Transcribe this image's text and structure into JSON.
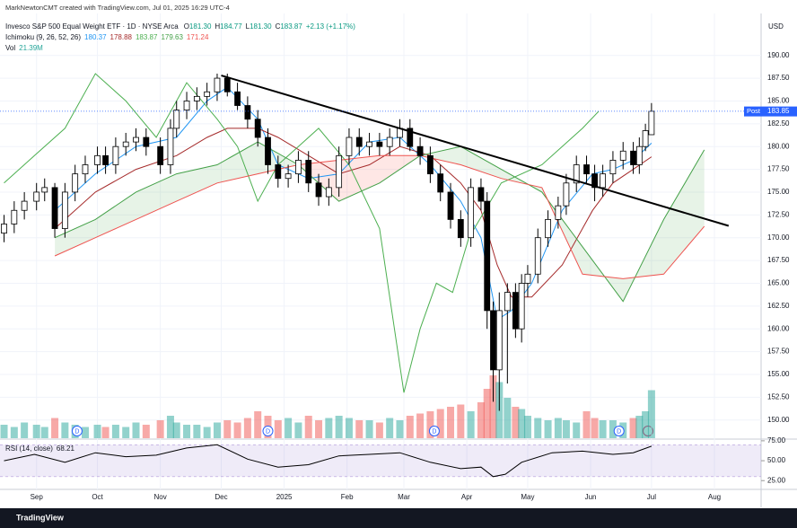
{
  "chart_data": {
    "type": "candlestick",
    "created_by": "MarkNewtonCMT created with TradingView.com, Jul 01, 2025 16:29 UTC-4",
    "currency": "USD",
    "brand": "TradingView",
    "legend": {
      "symbol": "Invesco S&P 500 Equal Weight ETF · 1D · NYSE Arca",
      "ohlc": [
        {
          "key": "O",
          "label": "181.30"
        },
        {
          "key": "H",
          "label": "184.77"
        },
        {
          "key": "L",
          "label": "181.30"
        },
        {
          "key": "C",
          "label": "183.87"
        }
      ],
      "change": "+2.13 (+1.17%)",
      "color": "#089981"
    },
    "xlim": [
      13,
      388
    ],
    "xticks": [
      {
        "value": 31,
        "label": "Sep"
      },
      {
        "value": 61,
        "label": "Oct"
      },
      {
        "value": 92,
        "label": "Nov"
      },
      {
        "value": 122,
        "label": "Dec"
      },
      {
        "value": 153,
        "label": "2025"
      },
      {
        "value": 184,
        "label": "Feb"
      },
      {
        "value": 212,
        "label": "Mar"
      },
      {
        "value": 243,
        "label": "Apr"
      },
      {
        "value": 273,
        "label": "May"
      },
      {
        "value": 304,
        "label": "Jun"
      },
      {
        "value": 334,
        "label": "Jul"
      },
      {
        "value": 365,
        "label": "Aug"
      }
    ],
    "ylim": [
      148,
      194.6
    ],
    "yticks": [
      {
        "value": 150,
        "label": "150.00"
      },
      {
        "value": 152.5,
        "label": "152.50"
      },
      {
        "value": 155,
        "label": "155.00"
      },
      {
        "value": 157.5,
        "label": "157.50"
      },
      {
        "value": 160,
        "label": "160.00"
      },
      {
        "value": 162.5,
        "label": "162.50"
      },
      {
        "value": 165,
        "label": "165.00"
      },
      {
        "value": 167.5,
        "label": "167.50"
      },
      {
        "value": 170,
        "label": "170.00"
      },
      {
        "value": 172.5,
        "label": "172.50"
      },
      {
        "value": 175,
        "label": "175.00"
      },
      {
        "value": 177.5,
        "label": "177.50"
      },
      {
        "value": 180,
        "label": "180.00"
      },
      {
        "value": 182.5,
        "label": "182.50"
      },
      {
        "value": 185,
        "label": "185.00"
      },
      {
        "value": 187.5,
        "label": "187.50"
      },
      {
        "value": 190,
        "label": "190.00"
      }
    ],
    "grid": true,
    "up_color": "#ffffff",
    "down_color": "#000000",
    "wick_color": "#000000",
    "x": [
      15,
      20,
      25,
      31,
      35,
      40,
      45,
      50,
      55,
      61,
      65,
      70,
      75,
      80,
      85,
      92,
      97,
      100,
      105,
      110,
      115,
      120,
      125,
      130,
      135,
      140,
      145,
      150,
      155,
      160,
      165,
      170,
      175,
      180,
      185,
      190,
      195,
      200,
      205,
      210,
      215,
      220,
      225,
      230,
      235,
      240,
      245,
      250,
      253,
      256,
      259,
      263,
      267,
      270,
      273,
      278,
      283,
      288,
      292,
      297,
      302,
      306,
      310,
      315,
      320,
      325,
      328,
      331,
      334
    ],
    "open": [
      170.5,
      171.5,
      173,
      174,
      175,
      175.5,
      171,
      175,
      177,
      178,
      179,
      178,
      180,
      180.5,
      181,
      180,
      178,
      182,
      184,
      185,
      185.5,
      186,
      187.5,
      186,
      184.5,
      183,
      181,
      178,
      176.5,
      177,
      178.5,
      176,
      174.5,
      175.5,
      179,
      181,
      180,
      180.5,
      180,
      181,
      182,
      180,
      179,
      177,
      175,
      172,
      170,
      175.5,
      174,
      162,
      155.5,
      162,
      164,
      160,
      165,
      166,
      170,
      172,
      173.5,
      176,
      178,
      177,
      175.5,
      177,
      178.5,
      179.5,
      178,
      180,
      181.3
    ],
    "high": [
      172.5,
      174,
      175,
      176,
      176.5,
      176,
      176,
      178,
      179,
      180,
      180,
      181,
      181.5,
      182,
      182,
      181,
      183,
      185,
      186,
      186.5,
      187,
      188,
      188,
      187,
      185.5,
      184,
      182,
      179,
      178,
      179.5,
      179.5,
      177,
      176.5,
      180,
      182,
      182,
      181.5,
      181.5,
      182,
      183,
      183,
      181,
      180,
      178,
      176,
      173,
      176.5,
      176.5,
      175,
      163,
      164,
      165,
      165,
      166,
      167,
      171,
      173,
      174.5,
      177,
      179,
      179,
      178,
      178,
      179.5,
      180.5,
      180.5,
      181,
      182.5,
      184.77
    ],
    "low": [
      169.5,
      170.5,
      172,
      173,
      174,
      170,
      170,
      174,
      176,
      177,
      177,
      177,
      179,
      179.5,
      179,
      177,
      177,
      181,
      183,
      184,
      184.5,
      185,
      185.5,
      184,
      182,
      180,
      177,
      175.5,
      175.5,
      176,
      175,
      173.5,
      173.5,
      174.5,
      178,
      179,
      179,
      179,
      179,
      180,
      179.5,
      178,
      176,
      174,
      171,
      169,
      169,
      173,
      160,
      152,
      151,
      154,
      159,
      158.5,
      163.5,
      165,
      169,
      171,
      172.5,
      175,
      176,
      174,
      174.5,
      176,
      177.5,
      177,
      177,
      179.5,
      181.3
    ],
    "close": [
      171.5,
      173,
      174,
      175,
      175.5,
      171,
      175,
      177,
      178,
      179,
      178,
      180,
      180.5,
      181,
      180,
      178,
      182,
      184,
      185,
      185.5,
      186,
      187.5,
      186,
      184.5,
      183,
      181,
      178,
      176.5,
      177,
      178.5,
      176,
      174.5,
      175.5,
      179,
      181,
      180,
      180.5,
      180,
      181,
      182,
      180,
      179,
      177,
      175,
      172,
      170,
      175.5,
      174,
      162,
      155.5,
      162,
      164,
      160,
      165,
      166,
      170,
      172,
      173.5,
      176,
      178,
      177,
      175.5,
      177,
      178.5,
      179.5,
      178,
      180,
      181.74,
      183.87
    ],
    "volume": {
      "name": "Vol",
      "label": "21.39M",
      "label_color": "#26a69a",
      "up_color": "rgba(38,166,154,0.5)",
      "down_color": "rgba(239,83,80,0.5)",
      "values": [
        6000000,
        5000000,
        7000000,
        6000000,
        5000000,
        9000000,
        7000000,
        6000000,
        5000000,
        6000000,
        5000000,
        6000000,
        5000000,
        7000000,
        6000000,
        8000000,
        10000000,
        7000000,
        6000000,
        6000000,
        5000000,
        7000000,
        8000000,
        7000000,
        9000000,
        12000000,
        10000000,
        8000000,
        9000000,
        7000000,
        10000000,
        8000000,
        9000000,
        10000000,
        9000000,
        8000000,
        8000000,
        7000000,
        9000000,
        8000000,
        10000000,
        11000000,
        12000000,
        13000000,
        14000000,
        15000000,
        12000000,
        16000000,
        22000000,
        28000000,
        25000000,
        18000000,
        14000000,
        13000000,
        10000000,
        9000000,
        8000000,
        9000000,
        8000000,
        7000000,
        12000000,
        9000000,
        8000000,
        8000000,
        7000000,
        9000000,
        10000000,
        12000000,
        21390000
      ]
    },
    "ichimoku": {
      "name": "Ichimoku (9, 26, 52, 26)",
      "cloud": [
        3,
        4
      ],
      "cloud_up": "rgba(67,160,71,0.13)",
      "cloud_down": "rgba(244,67,54,0.13)",
      "lines": [
        {
          "color": "#2196f3",
          "x": [
            40,
            60,
            80,
            100,
            115,
            125,
            140,
            150,
            165,
            180,
            195,
            210,
            225,
            240,
            250,
            258,
            265,
            275,
            290,
            305,
            315,
            325,
            334
          ],
          "values": [
            173,
            177,
            180,
            181,
            185,
            186.5,
            183,
            178,
            176.5,
            177,
            180.5,
            181,
            178,
            174,
            170,
            161,
            162,
            165,
            173,
            177,
            177.5,
            178.5,
            180.37
          ]
        },
        {
          "color": "#a52a2a",
          "x": [
            40,
            60,
            80,
            100,
            115,
            125,
            140,
            150,
            165,
            180,
            195,
            210,
            225,
            240,
            250,
            258,
            265,
            275,
            290,
            305,
            315,
            325,
            334
          ],
          "values": [
            171,
            175,
            177.5,
            179,
            181,
            182,
            182,
            181,
            179,
            177,
            178,
            180,
            179,
            176,
            173,
            167,
            163.5,
            163.5,
            167,
            173,
            176,
            177.5,
            178.88
          ]
        },
        {
          "color": "#4caf50",
          "x": [
            15,
            30,
            45,
            60,
            75,
            90,
            105,
            120,
            130,
            140,
            150,
            160,
            170,
            185,
            200,
            212,
            220,
            228,
            236,
            244,
            260,
            280,
            300,
            308
          ],
          "values": [
            176,
            179,
            182,
            188,
            185,
            181,
            187,
            183,
            180,
            174,
            178,
            180,
            182,
            178,
            171,
            153,
            160,
            165,
            164,
            170,
            176,
            178,
            182,
            183.87
          ]
        },
        {
          "color": "#43a047",
          "x": [
            40,
            60,
            80,
            100,
            120,
            140,
            160,
            180,
            200,
            220,
            240,
            260,
            280,
            300,
            320,
            340,
            360
          ],
          "values": [
            170,
            172,
            175,
            177,
            178,
            180.5,
            178,
            174,
            176,
            179,
            180,
            177.5,
            175,
            169,
            163,
            172,
            179.63
          ]
        },
        {
          "color": "#ef5350",
          "x": [
            40,
            60,
            80,
            100,
            120,
            140,
            160,
            180,
            200,
            220,
            240,
            260,
            280,
            300,
            320,
            340,
            360
          ],
          "values": [
            168,
            170,
            172,
            174,
            176,
            177,
            178,
            178.5,
            179,
            179,
            178,
            176.5,
            175.5,
            166,
            165.5,
            166,
            171.24
          ]
        }
      ]
    },
    "trendline": {
      "x": [
        122,
        372
      ],
      "y": [
        187.8,
        171.3
      ],
      "color": "#000000"
    },
    "last_price": 183.87,
    "post": {
      "label": "Post",
      "value": 183.85,
      "color": "#2962ff"
    },
    "events": [
      {
        "x": 51,
        "label": "D"
      },
      {
        "x": 145,
        "label": "D"
      },
      {
        "x": 227,
        "label": "D"
      },
      {
        "x": 318,
        "label": "D"
      }
    ],
    "rsi": {
      "name": "RSI (14, close)",
      "color": "#000000",
      "band": [
        30,
        70
      ],
      "band_color": "rgba(126,87,194,0.12)",
      "ylim": [
        14,
        76
      ],
      "yticks": [
        {
          "value": 25,
          "label": "25.00"
        },
        {
          "value": 50,
          "label": "50.00"
        },
        {
          "value": 75,
          "label": "75.00"
        }
      ],
      "x": [
        15,
        30,
        45,
        60,
        75,
        90,
        105,
        120,
        135,
        150,
        165,
        180,
        195,
        210,
        225,
        240,
        250,
        256,
        262,
        270,
        285,
        300,
        315,
        325,
        334
      ],
      "values": [
        50,
        58,
        48,
        60,
        55,
        57,
        66,
        70,
        52,
        42,
        45,
        56,
        58,
        60,
        48,
        40,
        42,
        30,
        33,
        48,
        60,
        62,
        58,
        60,
        68.21
      ]
    }
  }
}
